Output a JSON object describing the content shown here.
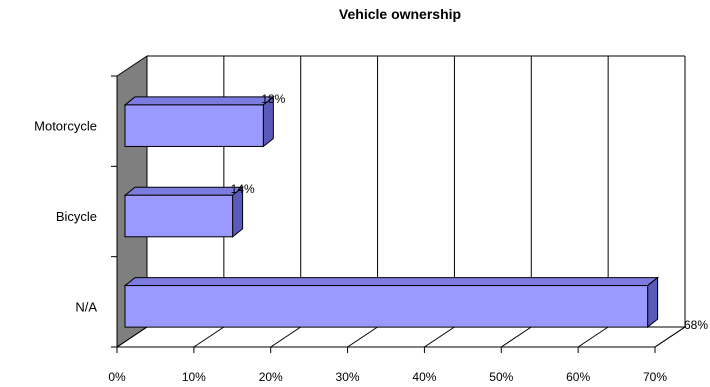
{
  "chart_data": {
    "type": "bar",
    "orientation": "horizontal",
    "three_d": true,
    "title": "Vehicle ownership",
    "xlabel": "",
    "ylabel": "",
    "categories": [
      "Motorcycle",
      "Bicycle",
      "N/A"
    ],
    "values": [
      18,
      14,
      68
    ],
    "data_labels": [
      "18%",
      "14%",
      "68%"
    ],
    "xlim": [
      0,
      70
    ],
    "x_ticks": [
      0,
      10,
      20,
      30,
      40,
      50,
      60,
      70
    ],
    "x_tick_labels": [
      "0%",
      "10%",
      "20%",
      "30%",
      "40%",
      "50%",
      "60%",
      "70%"
    ],
    "grid": true,
    "legend": "none",
    "colors": {
      "bar_front": "#9999ff",
      "bar_top": "#7b7be0",
      "bar_side": "#5a5ab8",
      "wall": "#7f7f7f",
      "floor": "#ffffff",
      "grid": "#000000"
    }
  }
}
